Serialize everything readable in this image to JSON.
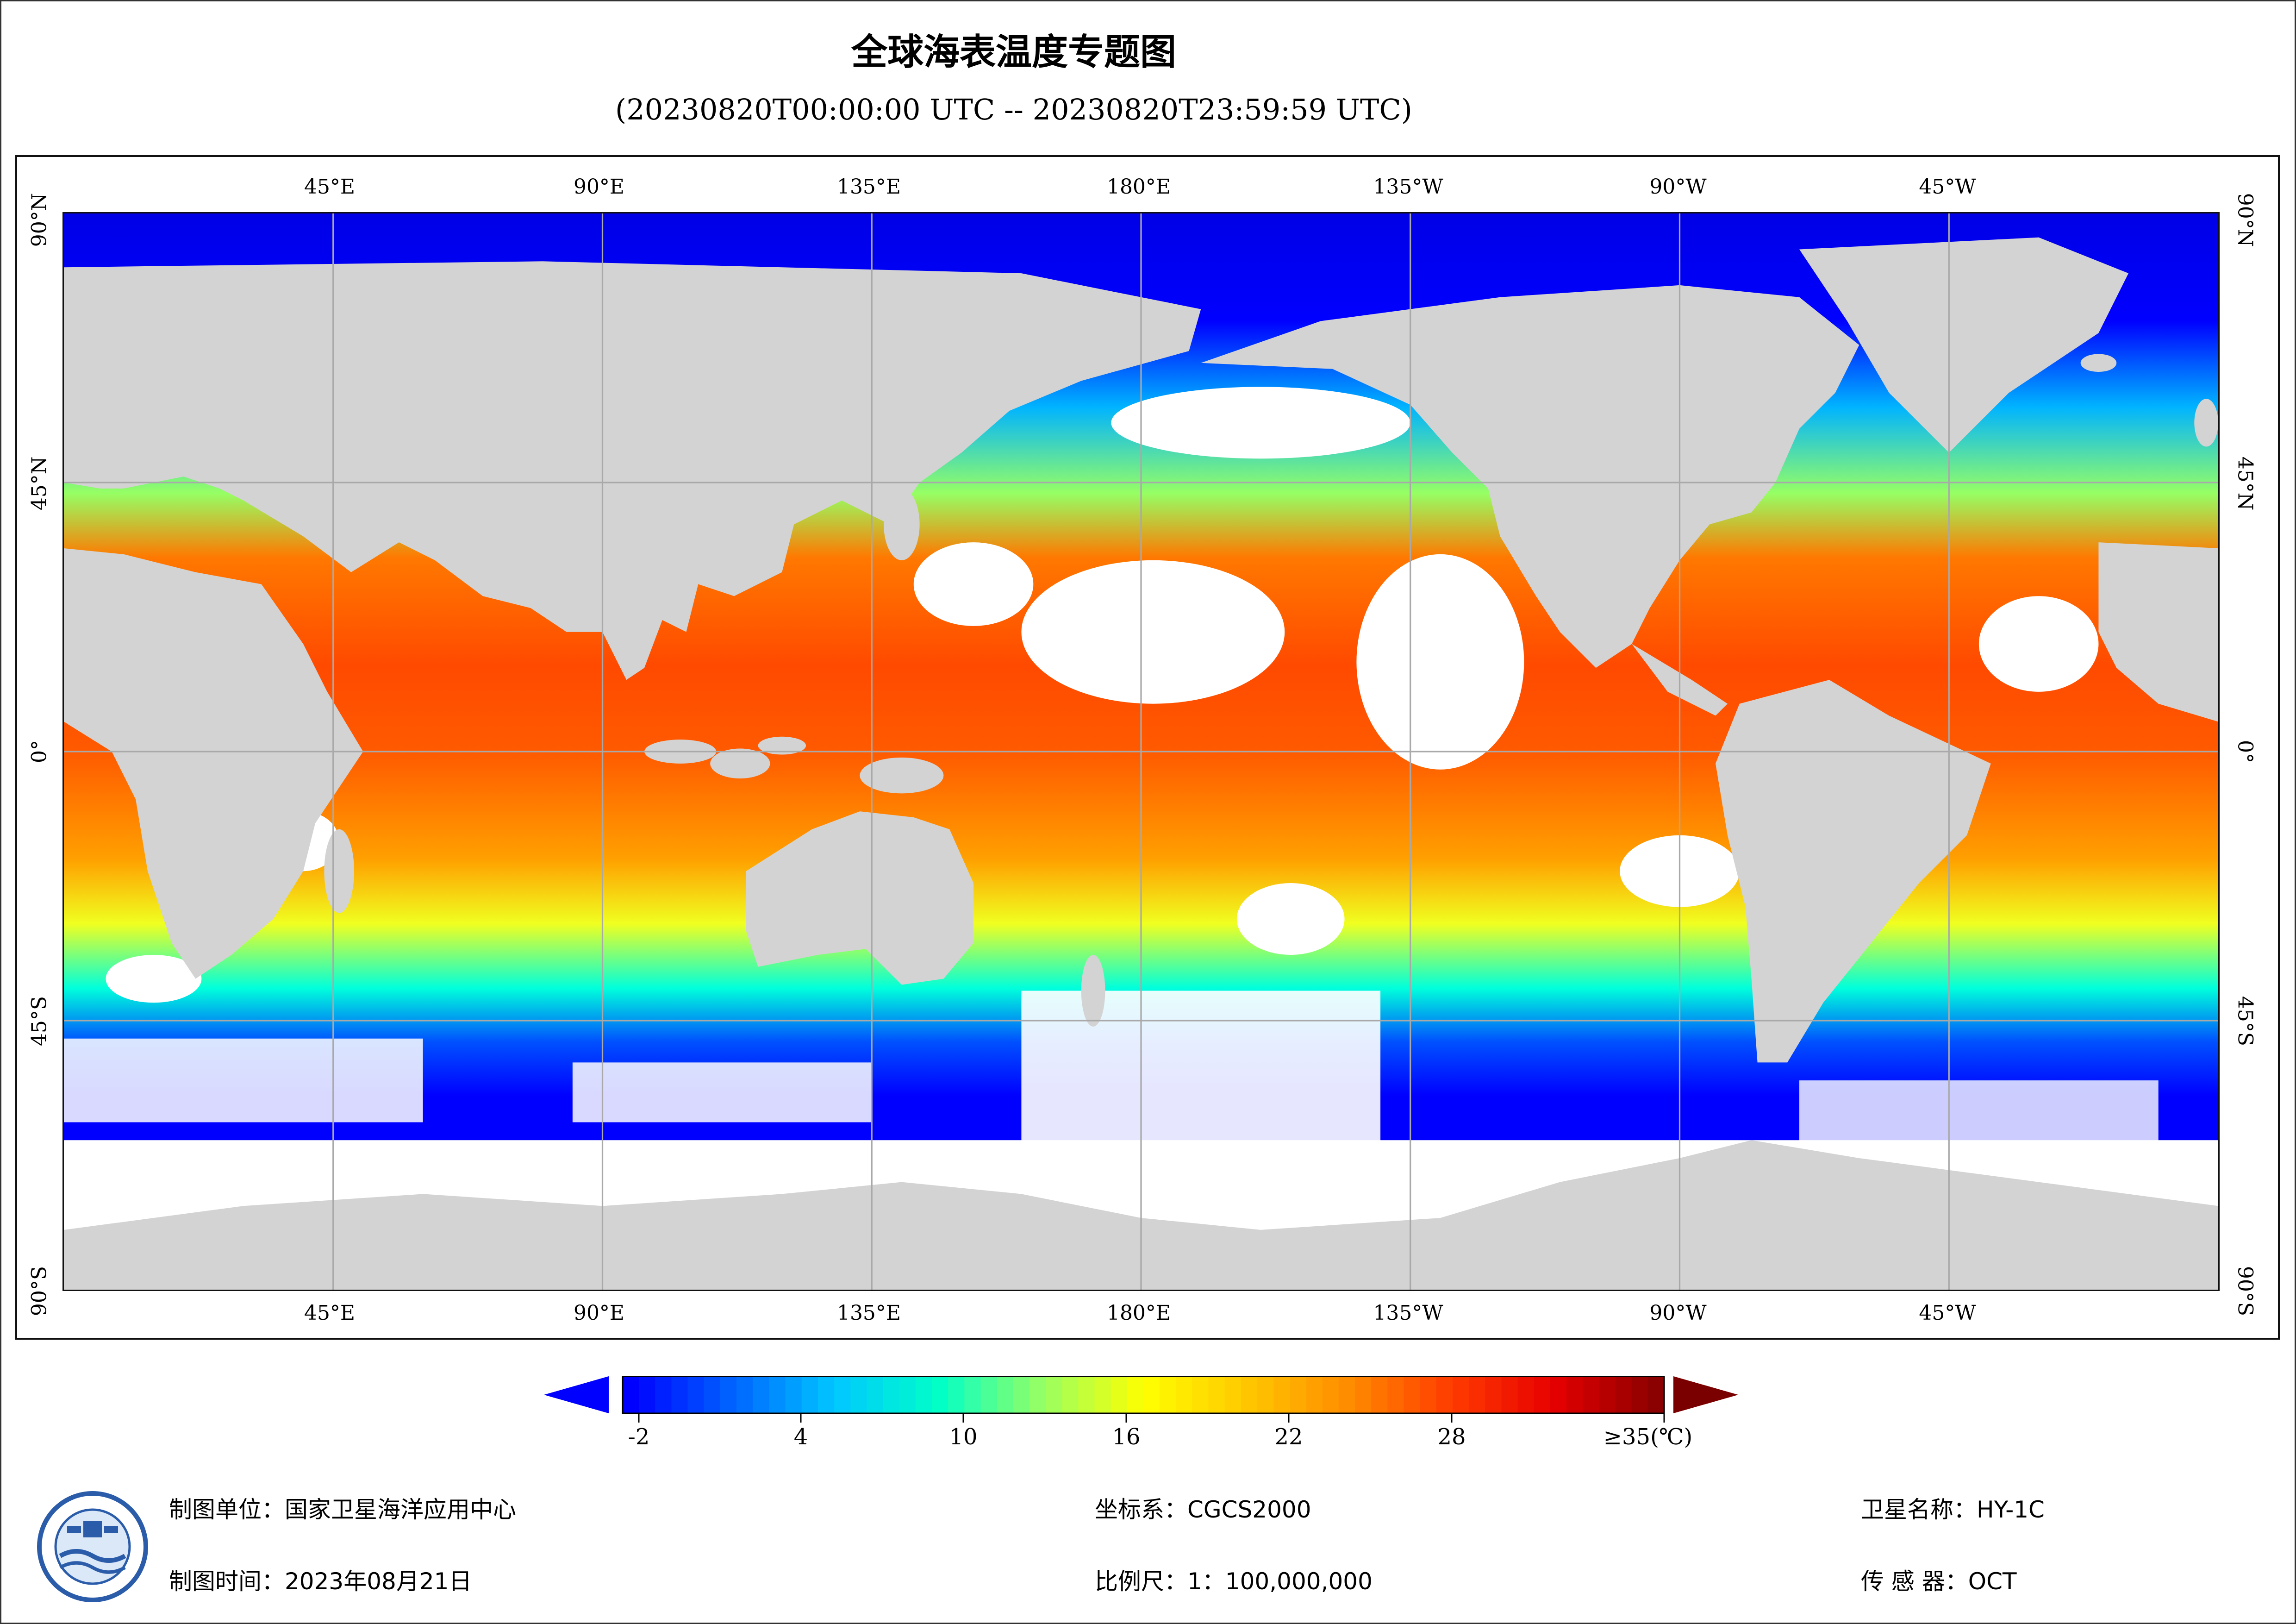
{
  "title": "全球海表温度专题图",
  "time_range": "(20230820T00:00:00 UTC -- 20230820T23:59:59 UTC)",
  "map": {
    "projection": "equirectangular",
    "lon_range": [
      0,
      360
    ],
    "lat_range": [
      -90,
      90
    ],
    "top_lon_labels": [
      "45°E",
      "90°E",
      "135°E",
      "180°E",
      "135°W",
      "90°W",
      "45°W"
    ],
    "bottom_lon_labels": [
      "45°E",
      "90°E",
      "135°E",
      "180°E",
      "135°W",
      "90°W",
      "45°W"
    ],
    "lat_labels": [
      "90°N",
      "45°N",
      "0°",
      "45°S",
      "90°S"
    ],
    "colors": {
      "land": "#d3d3d3",
      "no_data": "#ffffff",
      "gridline": "#a9a9a9"
    }
  },
  "colorbar": {
    "tick_labels": [
      "-2",
      "4",
      "10",
      "16",
      "22",
      "28",
      "≥35(℃)"
    ],
    "colors": [
      "#0000ff",
      "#0064ff",
      "#00c8ff",
      "#00ffc8",
      "#96ff64",
      "#ffff00",
      "#ffc800",
      "#ff8c00",
      "#ff3c00",
      "#e60000",
      "#8b0000"
    ],
    "under_color": "#0000ff",
    "over_color": "#7a0000"
  },
  "footer": {
    "producer_label": "制图单位：国家卫星海洋应用中心",
    "date_label": "制图时间：2023年08月21日",
    "crs_label": "坐标系：CGCS2000",
    "scale_label": "比例尺：1：100,000,000",
    "satellite_label": "卫星名称：HY-1C",
    "sensor_label": "传 感 器：OCT"
  }
}
